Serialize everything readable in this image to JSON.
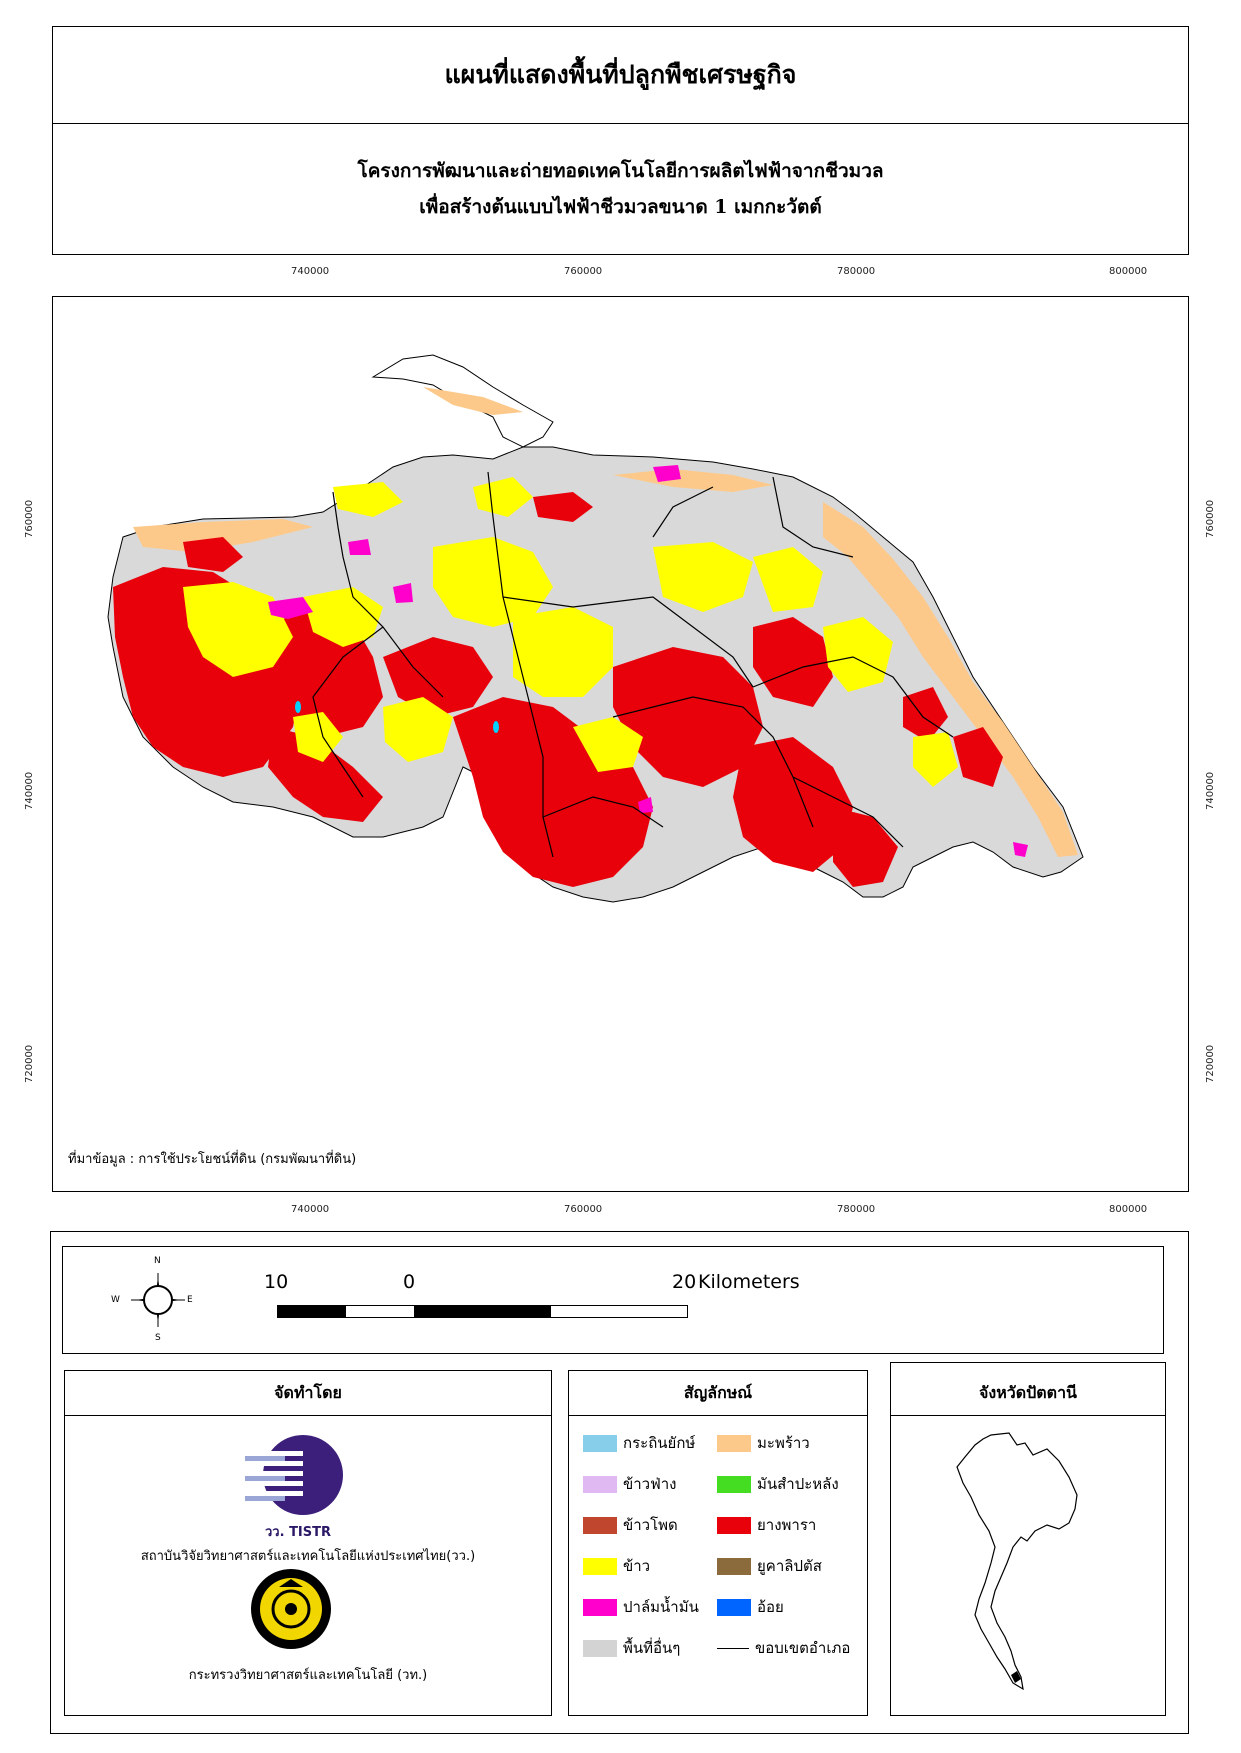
{
  "header": {
    "title": "แผนที่แสดงพื้นที่ปลูกพืชเศรษฐกิจ",
    "subtitle_line1": "โครงการพัฒนาและถ่ายทอดเทคโนโลยีการผลิตไฟฟ้าจากชีวมวล",
    "subtitle_line2": "เพื่อสร้างต้นแบบไฟฟ้าชีวมวลขนาด 1 เมกกะวัตต์"
  },
  "map": {
    "x_ticks": [
      "740000",
      "760000",
      "780000",
      "800000"
    ],
    "y_ticks": [
      "760000",
      "740000",
      "720000"
    ],
    "source_note": "ที่มาข้อมูล : การใช้ประโยชน์ที่ดิน  (กรมพัฒนาที่ดิน)",
    "colors": {
      "rubber": "#e8000b",
      "rice": "#ffff00",
      "coconut": "#fdc98b",
      "other": "#d9d9d9",
      "oil_palm": "#ff00cc",
      "boundary": "#000000"
    }
  },
  "scale_bar": {
    "labels": [
      "10",
      "0",
      "20"
    ],
    "unit": "Kilometers",
    "north": "N",
    "south": "S",
    "east": "E",
    "west": "W"
  },
  "producer": {
    "heading": "จัดทำโดย",
    "logo_text": "วว. TISTR",
    "org1": "สถาบันวิจัยวิทยาศาสตร์และเทคโนโลยีแห่งประเทศไทย(วว.)",
    "org2": "กระทรวงวิทยาศาสตร์และเทคโนโลยี (วท.)"
  },
  "legend": {
    "heading": "สัญลักษณ์",
    "items_left": [
      {
        "label": "กระถินยักษ์",
        "color": "#87ceeb"
      },
      {
        "label": "ข้าวฟ่าง",
        "color": "#e0b8f2"
      },
      {
        "label": "ข้าวโพด",
        "color": "#c0472d"
      },
      {
        "label": "ข้าว",
        "color": "#ffff00"
      },
      {
        "label": "ปาล์มน้ำมัน",
        "color": "#ff00cc"
      },
      {
        "label": "พื้นที่อื่นๆ",
        "color": "#d3d3d3"
      }
    ],
    "items_right": [
      {
        "label": "มะพร้าว",
        "color": "#fdc98b"
      },
      {
        "label": "มันสำปะหลัง",
        "color": "#44dd22"
      },
      {
        "label": "ยางพารา",
        "color": "#e8000b"
      },
      {
        "label": "ยูคาลิปตัส",
        "color": "#8b6a3b"
      },
      {
        "label": "อ้อย",
        "color": "#0064ff"
      },
      {
        "label": "ขอบเขตอำเภอ",
        "color": "#000000"
      }
    ]
  },
  "province": {
    "heading": "จังหวัดปัตตานี"
  }
}
